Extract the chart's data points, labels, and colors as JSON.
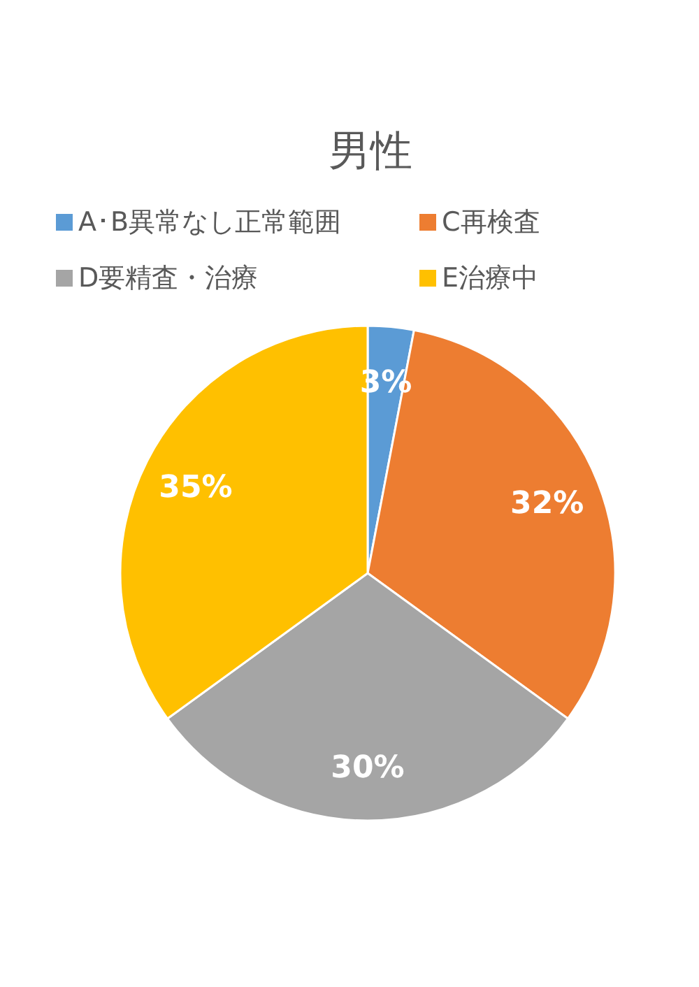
{
  "chart_data": {
    "type": "pie",
    "title": "男性",
    "categories": [
      "A･B異常なし正常範囲",
      "C再検査",
      "D要精査・治療",
      "E治療中"
    ],
    "values": [
      3,
      32,
      30,
      35
    ],
    "colors": [
      "#5b9bd5",
      "#ed7d31",
      "#a5a5a5",
      "#ffc000"
    ],
    "value_labels": [
      "3%",
      "32%",
      "30%",
      "35%"
    ],
    "legend": "top"
  }
}
